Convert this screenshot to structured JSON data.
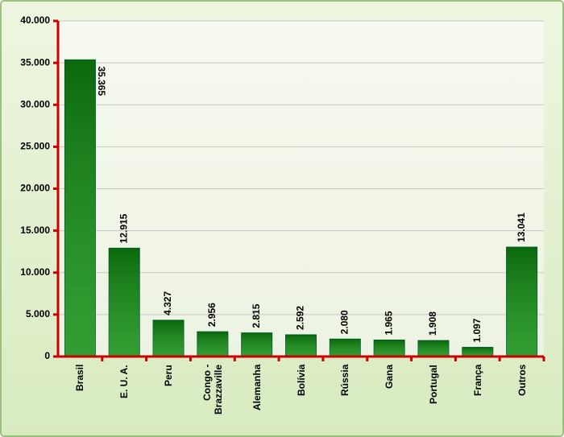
{
  "chart_data": {
    "type": "bar",
    "categories": [
      "Brasil",
      "E. U. A.",
      "Peru",
      "Congo - Brazzaville",
      "Alemanha",
      "Bolívia",
      "Rússia",
      "Gana",
      "Portugal",
      "França",
      "Outros"
    ],
    "values": [
      35365,
      12915,
      4327,
      2956,
      2815,
      2592,
      2080,
      1965,
      1908,
      1097,
      13041
    ],
    "value_labels": [
      "35.365",
      "12.915",
      "4.327",
      "2.956",
      "2.815",
      "2.592",
      "2.080",
      "1.965",
      "1.908",
      "1.097",
      "13.041"
    ],
    "color": "#0e8c0e",
    "ylim": [
      0,
      40000
    ],
    "yticks": [
      {
        "value": 0,
        "label": "0"
      },
      {
        "value": 5000,
        "label": "5.000"
      },
      {
        "value": 10000,
        "label": "10.000"
      },
      {
        "value": 15000,
        "label": "15.000"
      },
      {
        "value": 20000,
        "label": "20.000"
      },
      {
        "value": 25000,
        "label": "25.000"
      },
      {
        "value": 30000,
        "label": "30.000"
      },
      {
        "value": 35000,
        "label": "35.000"
      },
      {
        "value": 40000,
        "label": "40.000"
      }
    ],
    "grid": true
  }
}
